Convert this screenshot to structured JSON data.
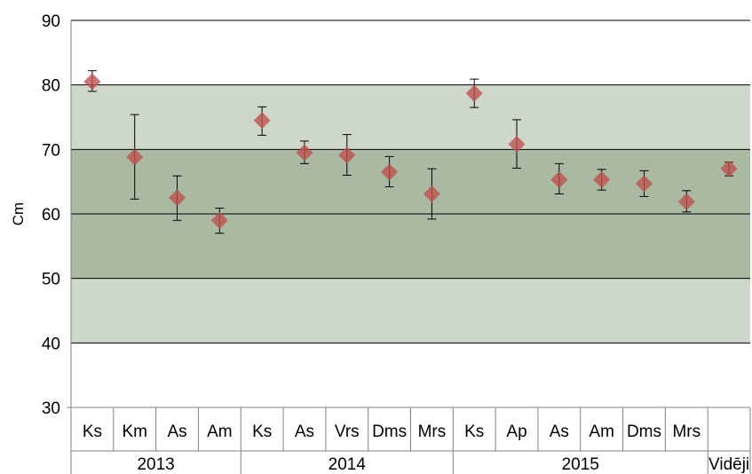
{
  "chart_data": {
    "type": "scatter",
    "ylabel": "Cm",
    "ylim": [
      30,
      90
    ],
    "yticks": [
      30,
      40,
      50,
      60,
      70,
      80,
      90
    ],
    "grid": true,
    "bands": [
      {
        "from": 40,
        "to": 80,
        "color": "#cdd8cb"
      },
      {
        "from": 50,
        "to": 70,
        "color": "#a9b9a2"
      }
    ],
    "categories": [
      "Ks",
      "Km",
      "As",
      "Am",
      "Ks",
      "As",
      "Vrs",
      "Dms",
      "Mrs",
      "Ks",
      "Ap",
      "As",
      "Am",
      "Dms",
      "Mrs",
      "Vidēji"
    ],
    "groups": [
      {
        "label": "2013",
        "count": 4
      },
      {
        "label": "2014",
        "count": 5
      },
      {
        "label": "2015",
        "count": 6
      },
      {
        "label": "",
        "count": 1
      }
    ],
    "values": [
      80.5,
      68.8,
      62.5,
      59.0,
      74.5,
      69.5,
      69.1,
      66.5,
      63.1,
      78.7,
      70.8,
      65.3,
      65.3,
      64.7,
      61.9,
      67.0
    ],
    "error_low": [
      79.0,
      62.3,
      59.0,
      57.0,
      72.2,
      67.8,
      66.0,
      64.2,
      59.2,
      76.5,
      67.1,
      63.1,
      63.7,
      62.7,
      60.3,
      65.9
    ],
    "error_high": [
      82.2,
      75.4,
      65.9,
      60.9,
      76.6,
      71.3,
      72.3,
      68.9,
      67.0,
      80.9,
      74.6,
      67.8,
      66.9,
      66.7,
      63.6,
      68.0
    ],
    "marker_color": "#c0504d"
  }
}
